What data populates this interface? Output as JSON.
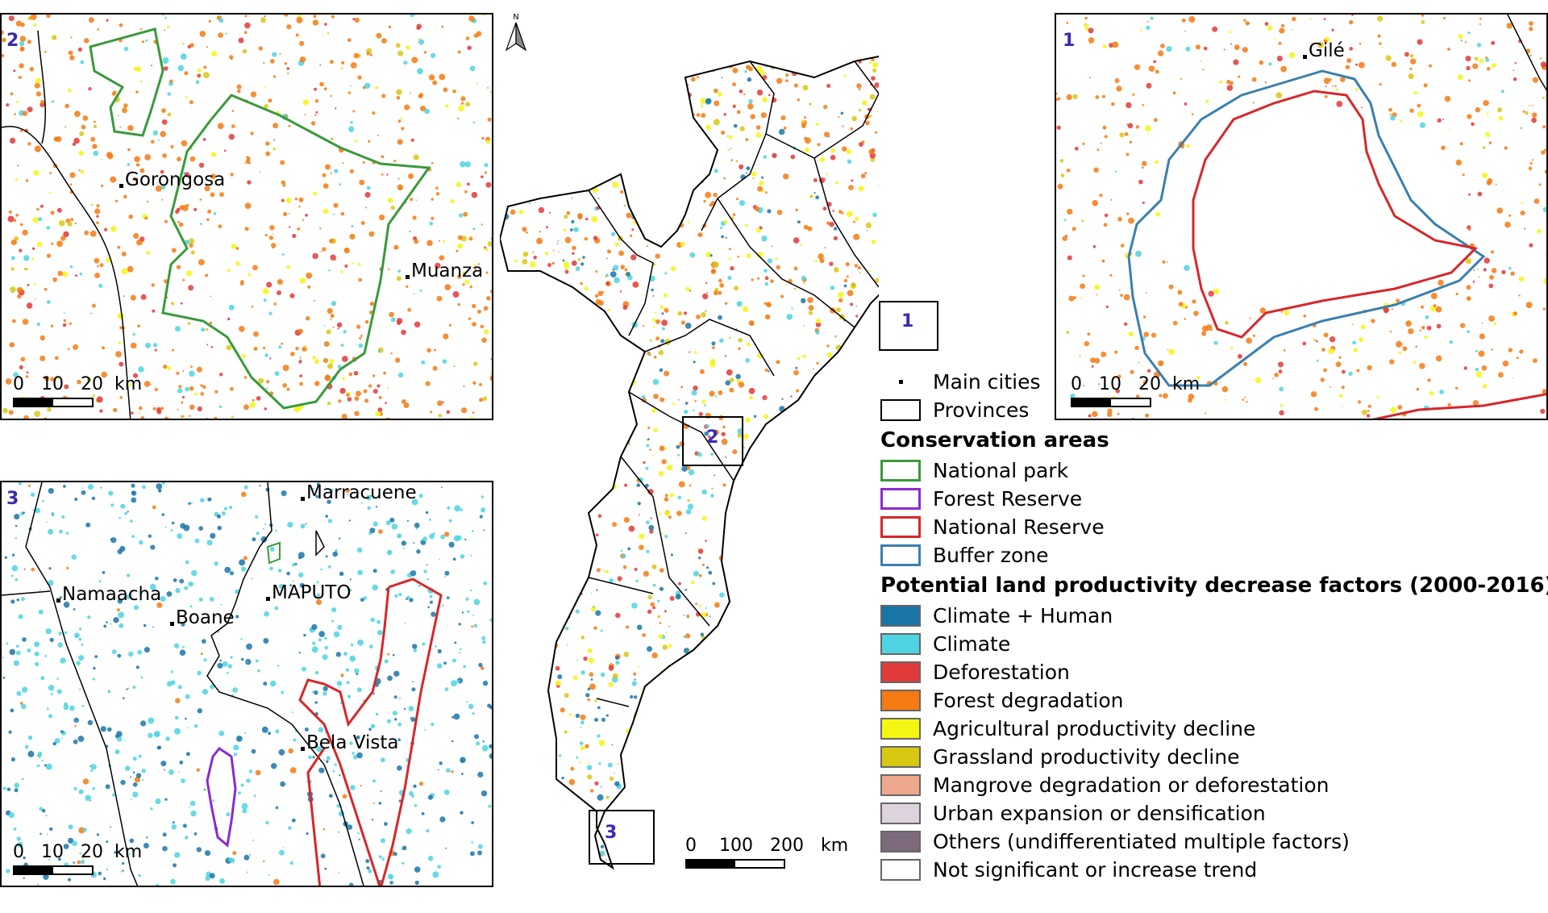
{
  "panels": {
    "p1": {
      "number": "1",
      "cities": [
        {
          "name": "Gilé"
        }
      ]
    },
    "p2": {
      "number": "2",
      "cities": [
        {
          "name": "Gorongosa"
        },
        {
          "name": "Muanza"
        }
      ]
    },
    "p3": {
      "number": "3",
      "cities": [
        {
          "name": "Marracuene"
        },
        {
          "name": "Namaacha"
        },
        {
          "name": "MAPUTO"
        },
        {
          "name": "Boane"
        },
        {
          "name": "Bela Vista"
        }
      ]
    }
  },
  "inset_scale": {
    "ticks": [
      "0",
      "10",
      "20"
    ],
    "unit": "km"
  },
  "main_scale": {
    "ticks": [
      "0",
      "100",
      "200"
    ],
    "unit": "km"
  },
  "north_arrow": {
    "label": "N",
    "icon": "north-arrow-icon"
  },
  "inset_boxes": [
    "1",
    "2",
    "3"
  ],
  "legend": {
    "base": [
      {
        "label": "Main cities",
        "symbol": "dot"
      },
      {
        "label": "Provinces",
        "symbol": "box"
      }
    ],
    "conservation_title": "Conservation areas",
    "conservation": [
      {
        "label": "National park",
        "color": "#3a9a3a"
      },
      {
        "label": "Forest Reserve",
        "color": "#8a2bd0"
      },
      {
        "label": "National Reserve",
        "color": "#d7272a"
      },
      {
        "label": "Buffer zone",
        "color": "#3a7fb0"
      }
    ],
    "factors_title": "Potential land productivity decrease factors (2000-2016)",
    "factors": [
      {
        "label": "Climate + Human",
        "color": "#1a75a8"
      },
      {
        "label": "Climate",
        "color": "#4fd3e0"
      },
      {
        "label": "Deforestation",
        "color": "#e03a3a"
      },
      {
        "label": "Forest degradation",
        "color": "#f57a12"
      },
      {
        "label": "Agricultural productivity decline",
        "color": "#f5f514"
      },
      {
        "label": "Grassland productivity decline",
        "color": "#d8c812"
      },
      {
        "label": "Mangrove degradation or deforestation",
        "color": "#eda88c"
      },
      {
        "label": "Urban expansion or densification",
        "color": "#dcd3dc"
      },
      {
        "label": "Others (undifferentiated multiple factors)",
        "color": "#7d6b7d"
      },
      {
        "label": "Not significant or increase trend",
        "color": "#ffffff"
      }
    ]
  }
}
